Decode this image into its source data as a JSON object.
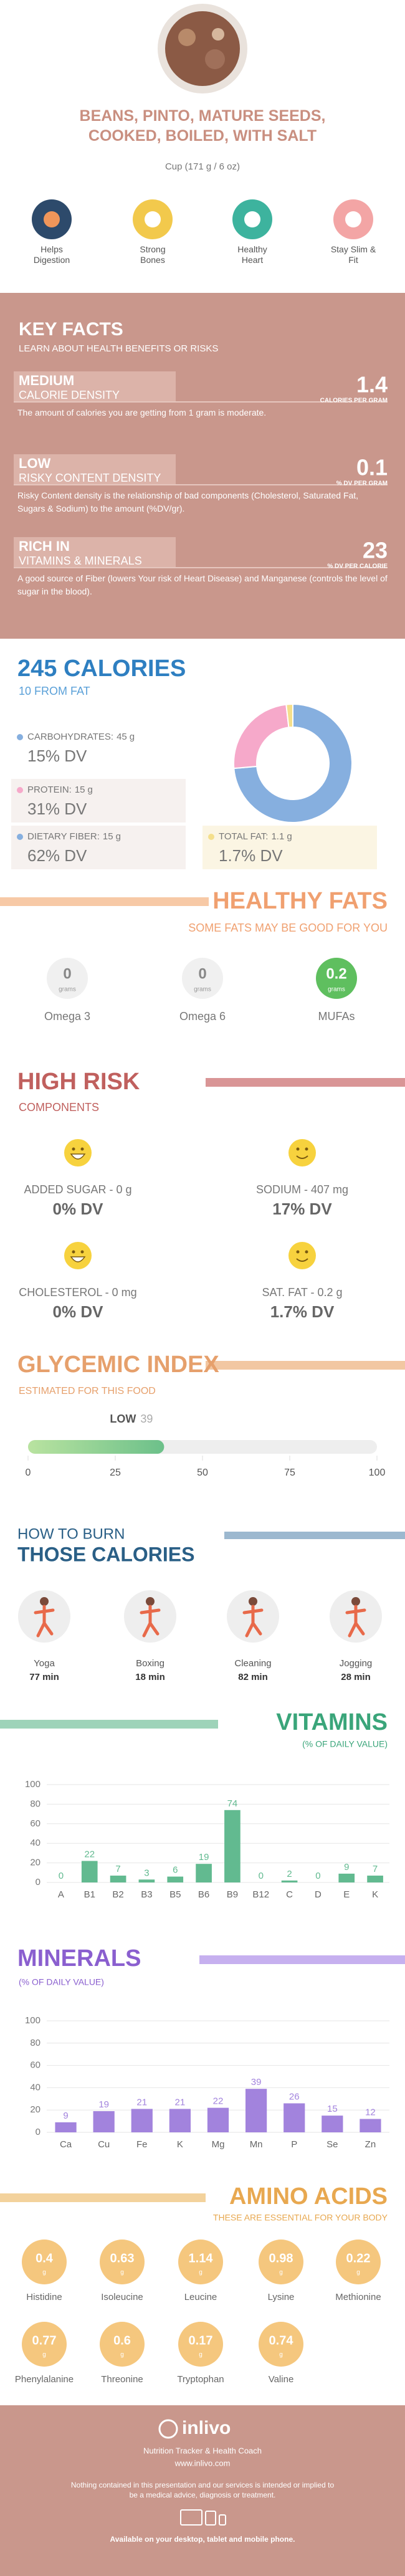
{
  "header": {
    "title": "BEANS, PINTO, MATURE SEEDS, COOKED, BOILED, WITH SALT",
    "serving": "Cup (171 g / 6 oz)"
  },
  "benefits": [
    "Helps Digestion",
    "Strong Bones",
    "Healthy Heart",
    "Stay Slim & Fit"
  ],
  "key_facts": {
    "title": "KEY FACTS",
    "subtitle": "LEARN ABOUT HEALTH BENEFITS OR RISKS",
    "items": [
      {
        "level": "MEDIUM",
        "label": "CALORIE DENSITY",
        "value": 1.4,
        "unit": "CALORIES PER GRAM",
        "text": "The amount of calories you are getting from 1 gram is moderate."
      },
      {
        "level": "LOW",
        "label": "RISKY CONTENT DENSITY",
        "value": 0.1,
        "unit": "% DV PER GRAM",
        "text": "Risky Content density is the relationship of bad components (Cholesterol, Saturated Fat, Sugars & Sodium) to the amount (%DV/gr)."
      },
      {
        "level": "RICH IN",
        "label": "VITAMINS & MINERALS",
        "value": 23,
        "unit": "% DV PER CALORIE",
        "text": "A good source of Fiber (lowers Your risk of Heart Disease) and Manganese (controls the level of sugar in the blood)."
      }
    ]
  },
  "calories": {
    "title": "245 CALORIES",
    "subtitle": "10 FROM FAT"
  },
  "fiber": {
    "name": "DIETARY FIBER:",
    "value": 15,
    "unit": "g",
    "dv": "62% DV"
  },
  "healthy_fats": {
    "title": "HEALTHY FATS",
    "subtitle": "SOME FATS MAY BE GOOD FOR YOU",
    "unit": "grams",
    "items": [
      {
        "name": "Omega 3",
        "value": 0
      },
      {
        "name": "Omega 6",
        "value": 0
      },
      {
        "name": "MUFAs",
        "value": 0.2
      }
    ]
  },
  "high_risk": {
    "title": "HIGH RISK",
    "subtitle": "COMPONENTS",
    "items": [
      {
        "label": "ADDED SUGAR - 0 g",
        "dv": "0% DV"
      },
      {
        "label": "SODIUM - 407 mg",
        "dv": "17% DV"
      },
      {
        "label": "CHOLESTEROL - 0 mg",
        "dv": "0% DV"
      },
      {
        "label": "SAT. FAT - 0.2 g",
        "dv": "1.7% DV"
      }
    ]
  },
  "burn": {
    "title_1": "HOW TO BURN",
    "title_2": "THOSE CALORIES",
    "items": [
      {
        "name": "Yoga",
        "time": "77 min"
      },
      {
        "name": "Boxing",
        "time": "18 min"
      },
      {
        "name": "Cleaning",
        "time": "82 min"
      },
      {
        "name": "Jogging",
        "time": "28 min"
      }
    ]
  },
  "amino_acids": {
    "title": "AMINO ACIDS",
    "subtitle": "THESE ARE ESSENTIAL FOR YOUR BODY",
    "unit": "g",
    "items": [
      {
        "name": "Histidine",
        "value": 0.4
      },
      {
        "name": "Isoleucine",
        "value": 0.63
      },
      {
        "name": "Leucine",
        "value": 1.14
      },
      {
        "name": "Lysine",
        "value": 0.98
      },
      {
        "name": "Methionine",
        "value": 0.22
      },
      {
        "name": "Phenylalanine",
        "value": 0.77
      },
      {
        "name": "Threonine",
        "value": 0.6
      },
      {
        "name": "Tryptophan",
        "value": 0.17
      },
      {
        "name": "Valine",
        "value": 0.74
      }
    ]
  },
  "footer": {
    "brand": "inlivo",
    "tagline": "Nutrition Tracker & Health Coach",
    "url": "www.inlivo.com",
    "disclaimer": "Nothing contained in this presentation and our services is intended or implied to be a medical advice, diagnosis or treatment.",
    "availability": "Available on your desktop, tablet and mobile phone."
  },
  "chart_data": [
    {
      "type": "pie",
      "categories": [
        "CARBOHYDRATES:",
        "PROTEIN:",
        "TOTAL FAT:"
      ],
      "values": [
        45,
        15,
        1.1
      ],
      "unit": "g",
      "dv_labels": [
        "15% DV",
        "31% DV",
        "1.7% DV"
      ],
      "colors": [
        "#86afdf",
        "#f6a9ca",
        "#f4df8c"
      ]
    },
    {
      "type": "gauge",
      "title": "GLYCEMIC INDEX",
      "subtitle": "ESTIMATED FOR THIS FOOD",
      "label": "LOW",
      "values": [
        39
      ],
      "xlim": [
        0,
        100
      ],
      "xticks": [
        0,
        25,
        50,
        75,
        100
      ],
      "color": "#6cc08a"
    },
    {
      "type": "bar",
      "title": "VITAMINS",
      "subtitle": "(% OF DAILY VALUE)",
      "categories": [
        "A",
        "B1",
        "B2",
        "B3",
        "B5",
        "B6",
        "B9",
        "B12",
        "C",
        "D",
        "E",
        "K"
      ],
      "values": [
        0,
        22,
        7,
        3,
        6,
        19,
        74,
        0,
        2,
        0,
        9,
        7
      ],
      "ylim": [
        0,
        100
      ],
      "yticks": [
        0,
        20,
        40,
        60,
        80,
        100
      ],
      "grid": true,
      "color": "#62ba90"
    },
    {
      "type": "bar",
      "title": "MINERALS",
      "subtitle": "(% OF DAILY VALUE)",
      "categories": [
        "Ca",
        "Cu",
        "Fe",
        "K",
        "Mg",
        "Mn",
        "P",
        "Se",
        "Zn"
      ],
      "values": [
        9,
        19,
        21,
        21,
        22,
        39,
        26,
        15,
        12
      ],
      "ylim": [
        0,
        100
      ],
      "yticks": [
        0,
        20,
        40,
        60,
        80,
        100
      ],
      "grid": true,
      "color": "#a283dd"
    }
  ]
}
